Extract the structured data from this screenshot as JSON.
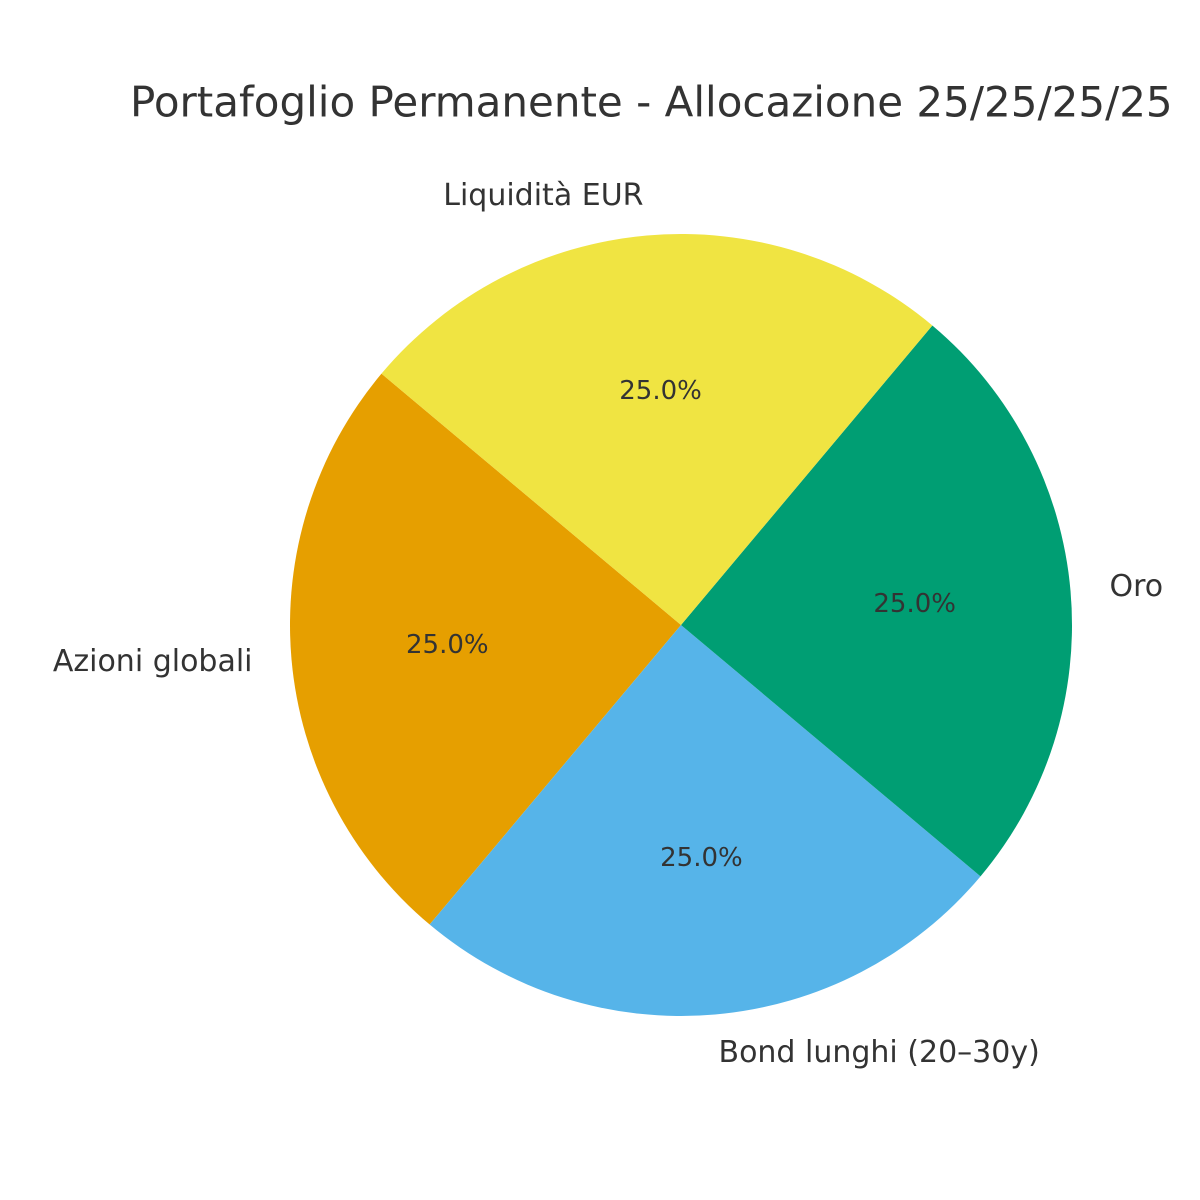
{
  "chart_data": {
    "type": "pie",
    "title": "Portafoglio Permanente - Allocazione 25/25/25/25",
    "categories": [
      "Azioni globali",
      "Bond lunghi (20–30y)",
      "Oro",
      "Liquidità EUR"
    ],
    "values": [
      25,
      25,
      25,
      25
    ],
    "value_labels": [
      "25.0%",
      "25.0%",
      "25.0%",
      "25.0%"
    ],
    "colors": [
      "#E69F00",
      "#56B4E9",
      "#009E73",
      "#F0E442"
    ]
  }
}
